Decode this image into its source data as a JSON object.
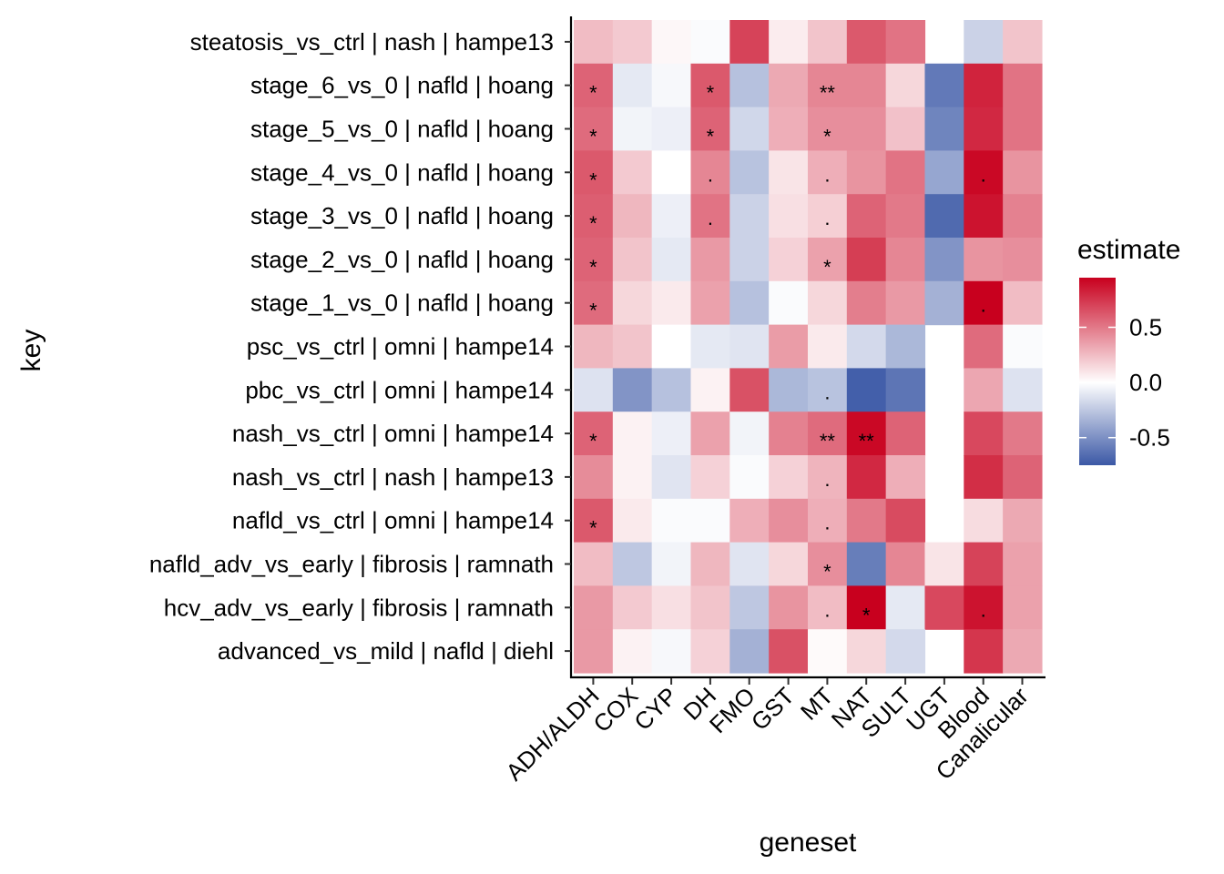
{
  "chart_data": {
    "type": "heatmap",
    "xlabel": "geneset",
    "ylabel": "key",
    "legend_title": "estimate",
    "legend_ticks": [
      "0.5",
      "0.0",
      "-0.5"
    ],
    "legend_tick_values": [
      0.5,
      0.0,
      -0.5
    ],
    "color_scale": {
      "low": "#3B58A6",
      "mid": "#FFFFFF",
      "high": "#C8001E",
      "limits": [
        -0.75,
        0.95
      ]
    },
    "columns": [
      "ADH/ALDH",
      "COX",
      "CYP",
      "DH",
      "FMO",
      "GST",
      "MT",
      "NAT",
      "SULT",
      "UGT",
      "Blood",
      "Canalicular"
    ],
    "rows": [
      "steatosis_vs_ctrl | nash | hampe13",
      "stage_6_vs_0 | nafld | hoang",
      "stage_5_vs_0 | nafld | hoang",
      "stage_4_vs_0 | nafld | hoang",
      "stage_3_vs_0 | nafld | hoang",
      "stage_2_vs_0 | nafld | hoang",
      "stage_1_vs_0 | nafld | hoang",
      "psc_vs_ctrl | omni | hampe14",
      "pbc_vs_ctrl | omni | hampe14",
      "nash_vs_ctrl | omni | hampe14",
      "nash_vs_ctrl | nash | hampe13",
      "nafld_vs_ctrl | omni | hampe14",
      "nafld_adv_vs_early | fibrosis | ramnath",
      "hcv_adv_vs_early | fibrosis | ramnath",
      "advanced_vs_mild | nafld | diehl"
    ],
    "values": [
      [
        0.25,
        0.2,
        0.03,
        -0.02,
        0.7,
        0.07,
        0.22,
        0.62,
        0.52,
        null,
        -0.2,
        0.22
      ],
      [
        0.58,
        -0.1,
        -0.03,
        0.62,
        -0.28,
        0.32,
        0.45,
        0.45,
        0.15,
        -0.6,
        0.82,
        0.52
      ],
      [
        0.55,
        -0.05,
        -0.07,
        0.58,
        -0.18,
        0.3,
        0.42,
        0.42,
        0.23,
        -0.55,
        0.8,
        0.52
      ],
      [
        0.62,
        0.2,
        0.0,
        0.45,
        -0.27,
        0.1,
        0.3,
        0.4,
        0.52,
        -0.4,
        0.92,
        0.4
      ],
      [
        0.6,
        0.27,
        -0.07,
        0.52,
        -0.2,
        0.12,
        0.18,
        0.58,
        0.5,
        -0.67,
        0.88,
        0.47
      ],
      [
        0.58,
        0.22,
        -0.1,
        0.38,
        -0.2,
        0.17,
        0.35,
        0.72,
        0.45,
        -0.48,
        0.4,
        0.42
      ],
      [
        0.55,
        0.15,
        0.08,
        0.35,
        -0.28,
        -0.02,
        0.15,
        0.48,
        0.38,
        -0.35,
        0.95,
        0.25
      ],
      [
        0.27,
        0.22,
        0.0,
        -0.1,
        -0.12,
        0.37,
        0.08,
        -0.17,
        -0.32,
        null,
        0.55,
        -0.02
      ],
      [
        -0.13,
        -0.48,
        -0.28,
        0.05,
        0.65,
        -0.32,
        -0.27,
        -0.72,
        -0.62,
        null,
        0.33,
        -0.13
      ],
      [
        0.58,
        0.05,
        -0.07,
        0.35,
        -0.05,
        0.47,
        0.55,
        0.92,
        0.58,
        null,
        0.68,
        0.5
      ],
      [
        0.43,
        0.05,
        -0.12,
        0.17,
        -0.02,
        0.17,
        0.28,
        0.8,
        0.3,
        null,
        0.78,
        0.58
      ],
      [
        0.62,
        0.08,
        -0.02,
        -0.02,
        0.3,
        0.42,
        0.3,
        0.5,
        0.67,
        null,
        0.13,
        0.32
      ],
      [
        0.25,
        -0.25,
        -0.05,
        0.27,
        -0.12,
        0.15,
        0.42,
        -0.58,
        0.45,
        0.1,
        0.7,
        0.35
      ],
      [
        0.38,
        0.2,
        0.12,
        0.22,
        -0.25,
        0.4,
        0.25,
        0.95,
        -0.1,
        0.68,
        0.88,
        0.35
      ],
      [
        0.38,
        0.05,
        -0.03,
        0.17,
        -0.35,
        0.65,
        0.02,
        0.15,
        -0.17,
        null,
        0.75,
        0.32
      ]
    ],
    "significance": [
      [
        "",
        "",
        "",
        "",
        "",
        "",
        "",
        "",
        "",
        "",
        "",
        ""
      ],
      [
        "*",
        "",
        "",
        "*",
        "",
        "",
        "**",
        "",
        "",
        "",
        "",
        ""
      ],
      [
        "*",
        "",
        "",
        "*",
        "",
        "",
        "*",
        "",
        "",
        "",
        "",
        ""
      ],
      [
        "*",
        "",
        "",
        ".",
        "",
        "",
        ".",
        "",
        "",
        "",
        ".",
        ""
      ],
      [
        "*",
        "",
        "",
        ".",
        "",
        "",
        ".",
        "",
        "",
        "",
        "",
        ""
      ],
      [
        "*",
        "",
        "",
        "",
        "",
        "",
        "*",
        "",
        "",
        "",
        "",
        ""
      ],
      [
        "*",
        "",
        "",
        "",
        "",
        "",
        "",
        "",
        "",
        "",
        ".",
        ""
      ],
      [
        "",
        "",
        "",
        "",
        "",
        "",
        "",
        "",
        "",
        "",
        "",
        ""
      ],
      [
        "",
        "",
        "",
        "",
        "",
        "",
        ".",
        "",
        "",
        "",
        "",
        ""
      ],
      [
        "*",
        "",
        "",
        "",
        "",
        "",
        "**",
        "**",
        "",
        "",
        "",
        ""
      ],
      [
        "",
        "",
        "",
        "",
        "",
        "",
        ".",
        "",
        "",
        "",
        "",
        ""
      ],
      [
        "*",
        "",
        "",
        "",
        "",
        "",
        ".",
        "",
        "",
        "",
        "",
        ""
      ],
      [
        "",
        "",
        "",
        "",
        "",
        "",
        "*",
        "",
        "",
        "",
        "",
        ""
      ],
      [
        "",
        "",
        "",
        "",
        "",
        "",
        ".",
        "*",
        "",
        "",
        ".",
        ""
      ],
      [
        "",
        "",
        "",
        "",
        "",
        "",
        "",
        "",
        "",
        "",
        "",
        ""
      ]
    ],
    "grid": false,
    "legend_position": "right"
  }
}
